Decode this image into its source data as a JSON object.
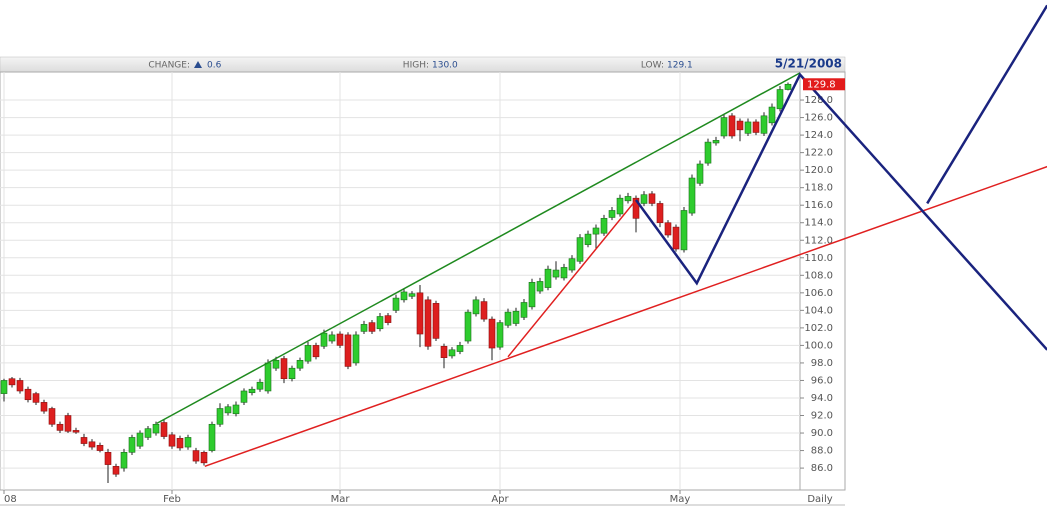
{
  "chart_data": {
    "type": "candlestick",
    "header": {
      "change_label": "CHANGE:",
      "change": "0.6",
      "high_label": "HIGH:",
      "high": "130.0",
      "low_label": "LOW:",
      "low": "129.1",
      "date": "5/21/2008"
    },
    "frequency": "Daily",
    "last_price": 129.8,
    "up_color": "#2ecc2e",
    "down_color": "#dd1f1f",
    "grid": true,
    "xlim": [
      -0.5,
      99.5
    ],
    "xticks": [
      {
        "value": 0,
        "label": "08"
      },
      {
        "value": 21,
        "label": "Feb"
      },
      {
        "value": 42,
        "label": "Mar"
      },
      {
        "value": 62,
        "label": "Apr"
      },
      {
        "value": 84.5,
        "label": "May"
      }
    ],
    "ylim": [
      83.5,
      131.2
    ],
    "yticks": [
      {
        "value": 86,
        "label": "86.0"
      },
      {
        "value": 88,
        "label": "88.0"
      },
      {
        "value": 90,
        "label": "90.0"
      },
      {
        "value": 92,
        "label": "92.0"
      },
      {
        "value": 94,
        "label": "94.0"
      },
      {
        "value": 96,
        "label": "96.0"
      },
      {
        "value": 98,
        "label": "98.0"
      },
      {
        "value": 100,
        "label": "100.0"
      },
      {
        "value": 102,
        "label": "102.0"
      },
      {
        "value": 104,
        "label": "104.0"
      },
      {
        "value": 106,
        "label": "106.0"
      },
      {
        "value": 108,
        "label": "108.0"
      },
      {
        "value": 110,
        "label": "110.0"
      },
      {
        "value": 112,
        "label": "112.0"
      },
      {
        "value": 114,
        "label": "114.0"
      },
      {
        "value": 116,
        "label": "116.0"
      },
      {
        "value": 118,
        "label": "118.0"
      },
      {
        "value": 120,
        "label": "120.0"
      },
      {
        "value": 122,
        "label": "122.0"
      },
      {
        "value": 124,
        "label": "124.0"
      },
      {
        "value": 126,
        "label": "126.0"
      },
      {
        "value": 128,
        "label": "128.0"
      }
    ],
    "ohlc": [
      [
        94.5,
        96.2,
        93.6,
        96.0
      ],
      [
        96.2,
        96.4,
        95.2,
        95.5
      ],
      [
        96.0,
        96.3,
        94.5,
        94.8
      ],
      [
        95.0,
        95.3,
        93.5,
        93.8
      ],
      [
        94.5,
        94.7,
        93.2,
        93.5
      ],
      [
        93.5,
        93.8,
        92.2,
        92.5
      ],
      [
        92.8,
        93.0,
        90.7,
        91.0
      ],
      [
        91.0,
        91.3,
        90.0,
        90.3
      ],
      [
        92.0,
        92.3,
        90.0,
        90.2
      ],
      [
        90.3,
        90.6,
        89.9,
        90.1
      ],
      [
        89.5,
        89.9,
        88.5,
        88.8
      ],
      [
        89.0,
        89.3,
        88.1,
        88.4
      ],
      [
        88.6,
        88.9,
        87.8,
        88.0
      ],
      [
        87.8,
        88.2,
        84.3,
        86.4
      ],
      [
        86.2,
        86.5,
        85.0,
        85.3
      ],
      [
        86.0,
        88.2,
        85.6,
        87.8
      ],
      [
        87.8,
        89.8,
        87.5,
        89.5
      ],
      [
        88.5,
        90.3,
        88.2,
        90.0
      ],
      [
        89.5,
        90.8,
        89.2,
        90.5
      ],
      [
        90.0,
        91.3,
        89.7,
        91.0
      ],
      [
        91.2,
        91.5,
        89.3,
        89.6
      ],
      [
        89.8,
        90.1,
        88.2,
        88.5
      ],
      [
        89.4,
        89.7,
        88.0,
        88.3
      ],
      [
        88.4,
        89.8,
        88.1,
        89.5
      ],
      [
        88.0,
        88.3,
        86.5,
        86.8
      ],
      [
        87.8,
        88.0,
        86.3,
        86.6
      ],
      [
        88.0,
        91.3,
        87.8,
        91.0
      ],
      [
        91.0,
        93.4,
        90.7,
        92.8
      ],
      [
        92.3,
        93.3,
        92.0,
        93.0
      ],
      [
        92.2,
        93.6,
        91.9,
        93.2
      ],
      [
        93.5,
        95.1,
        93.2,
        94.8
      ],
      [
        94.6,
        95.3,
        94.3,
        95.0
      ],
      [
        95.0,
        96.2,
        94.7,
        95.8
      ],
      [
        94.8,
        98.4,
        94.5,
        98.0
      ],
      [
        97.4,
        98.7,
        97.1,
        98.3
      ],
      [
        98.5,
        98.8,
        95.7,
        96.2
      ],
      [
        96.2,
        97.7,
        95.9,
        97.4
      ],
      [
        97.4,
        98.6,
        97.1,
        98.3
      ],
      [
        98.2,
        100.4,
        97.9,
        100.0
      ],
      [
        100.0,
        100.3,
        98.4,
        98.7
      ],
      [
        99.9,
        101.8,
        99.6,
        101.4
      ],
      [
        100.5,
        101.6,
        100.2,
        101.2
      ],
      [
        101.3,
        101.6,
        99.7,
        100.0
      ],
      [
        101.2,
        101.5,
        97.3,
        97.6
      ],
      [
        98.0,
        101.6,
        97.7,
        101.2
      ],
      [
        101.6,
        102.8,
        101.3,
        102.4
      ],
      [
        102.6,
        102.9,
        101.3,
        101.6
      ],
      [
        101.9,
        103.7,
        101.6,
        103.3
      ],
      [
        103.4,
        103.7,
        102.3,
        102.6
      ],
      [
        104.0,
        105.8,
        103.7,
        105.4
      ],
      [
        105.2,
        106.5,
        104.9,
        106.1
      ],
      [
        105.6,
        106.2,
        105.3,
        105.9
      ],
      [
        106.0,
        106.9,
        99.8,
        101.3
      ],
      [
        105.2,
        105.6,
        99.5,
        99.9
      ],
      [
        104.8,
        105.1,
        100.5,
        100.8
      ],
      [
        99.9,
        100.2,
        97.4,
        98.6
      ],
      [
        98.8,
        99.8,
        98.5,
        99.5
      ],
      [
        99.3,
        100.4,
        99.0,
        100.0
      ],
      [
        100.5,
        104.1,
        100.2,
        103.8
      ],
      [
        103.6,
        105.6,
        103.3,
        105.2
      ],
      [
        105.0,
        105.4,
        102.7,
        103.0
      ],
      [
        103.0,
        103.3,
        98.3,
        99.7
      ],
      [
        99.8,
        102.9,
        99.5,
        102.6
      ],
      [
        102.3,
        104.2,
        102.0,
        103.8
      ],
      [
        102.5,
        104.3,
        102.2,
        103.9
      ],
      [
        103.2,
        105.3,
        102.9,
        104.9
      ],
      [
        104.4,
        107.6,
        104.1,
        107.2
      ],
      [
        106.2,
        107.7,
        105.9,
        107.3
      ],
      [
        106.6,
        109.1,
        106.3,
        108.7
      ],
      [
        107.8,
        109.6,
        107.5,
        108.6
      ],
      [
        107.7,
        109.3,
        107.4,
        108.9
      ],
      [
        108.6,
        110.3,
        108.3,
        109.9
      ],
      [
        109.6,
        112.7,
        109.3,
        112.3
      ],
      [
        111.5,
        113.1,
        111.2,
        112.7
      ],
      [
        112.7,
        113.8,
        111.0,
        113.4
      ],
      [
        112.8,
        114.9,
        112.5,
        114.5
      ],
      [
        114.6,
        115.8,
        114.3,
        115.4
      ],
      [
        115.0,
        117.2,
        114.7,
        116.8
      ],
      [
        116.5,
        117.4,
        116.2,
        117.0
      ],
      [
        116.8,
        117.1,
        112.9,
        114.5
      ],
      [
        116.2,
        117.6,
        115.9,
        117.2
      ],
      [
        117.3,
        117.6,
        115.9,
        116.2
      ],
      [
        116.2,
        116.5,
        113.5,
        114.0
      ],
      [
        114.0,
        114.3,
        112.3,
        112.6
      ],
      [
        113.5,
        113.8,
        110.7,
        111.0
      ],
      [
        110.9,
        115.8,
        110.6,
        115.4
      ],
      [
        115.1,
        119.5,
        114.8,
        119.1
      ],
      [
        118.5,
        121.1,
        118.2,
        120.7
      ],
      [
        120.8,
        123.6,
        120.5,
        123.2
      ],
      [
        123.1,
        123.8,
        122.8,
        123.4
      ],
      [
        123.9,
        126.4,
        123.6,
        126.0
      ],
      [
        126.2,
        126.5,
        123.6,
        123.9
      ],
      [
        125.6,
        125.9,
        123.3,
        124.6
      ],
      [
        124.2,
        125.9,
        123.9,
        125.5
      ],
      [
        125.5,
        125.8,
        124.0,
        124.3
      ],
      [
        124.2,
        126.6,
        123.9,
        126.2
      ],
      [
        125.4,
        127.6,
        125.1,
        127.2
      ],
      [
        127.0,
        129.6,
        126.7,
        129.2
      ],
      [
        129.2,
        130.0,
        129.1,
        129.8
      ]
    ],
    "trend_lines": [
      {
        "color": "#1f8a1f",
        "x": [
          19.1,
          99.5
        ],
        "y": [
          91.1,
          131.1
        ]
      },
      {
        "color": "#e02020",
        "x": [
          25.1,
          130.4
        ],
        "y": [
          86.2,
          120.4
        ]
      },
      {
        "color": "#e02020",
        "x": [
          63,
          79
        ],
        "y": [
          98.7,
          116.6
        ]
      },
      {
        "color": "#1a237e",
        "x": [
          79,
          86.6,
          99.5,
          130.4
        ],
        "y": [
          116.6,
          107.1,
          130.9,
          99.5
        ]
      },
      {
        "color": "#1a237e",
        "x": [
          115.4,
          130.4
        ],
        "y": [
          116.2,
          138.8
        ]
      }
    ]
  }
}
